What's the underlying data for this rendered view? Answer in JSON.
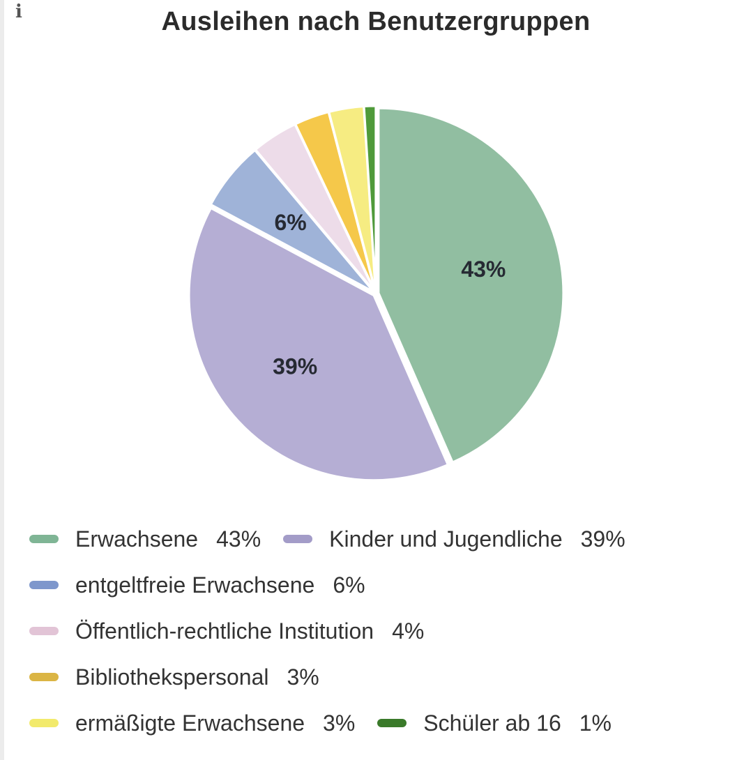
{
  "info": {
    "icon": "info-icon",
    "glyph": "i"
  },
  "chart_data": {
    "type": "pie",
    "title": "Ausleihen nach Benutzergruppen",
    "slices": [
      {
        "name": "Erwachsene",
        "value": 43,
        "label": "43%",
        "legend_value": "43%",
        "show_label": true,
        "color": "#91bea1",
        "legend_color": "#7fb595"
      },
      {
        "name": "Kinder und Jugendliche",
        "value": 39,
        "label": "39%",
        "legend_value": "39%",
        "show_label": true,
        "color": "#b5aed4",
        "legend_color": "#a39cc8"
      },
      {
        "name": "entgeltfreie Erwachsene",
        "value": 6,
        "label": "6%",
        "legend_value": "6%",
        "show_label": true,
        "color": "#9fb3d8",
        "legend_color": "#7e97cc"
      },
      {
        "name": "Öffentlich-rechtliche Institution",
        "value": 4,
        "label": "4%",
        "legend_value": "4%",
        "show_label": false,
        "color": "#eddce9",
        "legend_color": "#e2c4d6"
      },
      {
        "name": "Bibliothekspersonal",
        "value": 3,
        "label": "3%",
        "legend_value": "3%",
        "show_label": false,
        "color": "#f5c84a",
        "legend_color": "#dbb544"
      },
      {
        "name": "ermäßigte Erwachsene",
        "value": 3,
        "label": "3%",
        "legend_value": "3%",
        "show_label": false,
        "color": "#f6ec82",
        "legend_color": "#f2ea6c"
      },
      {
        "name": "Schüler ab 16",
        "value": 1,
        "label": "1%",
        "legend_value": "1%",
        "show_label": false,
        "color": "#4f9a3a",
        "legend_color": "#3a7a2a"
      }
    ],
    "legend_position": "bottom",
    "legend_rows": [
      [
        0,
        1
      ],
      [
        2
      ],
      [
        3
      ],
      [
        4
      ],
      [
        5,
        6
      ]
    ]
  }
}
